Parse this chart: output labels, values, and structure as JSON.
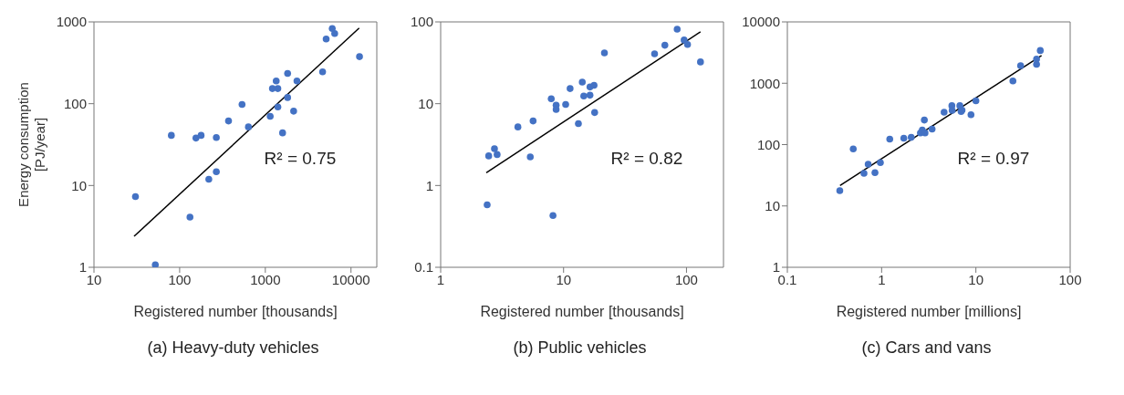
{
  "chart_data": [
    {
      "type": "scatter",
      "title": "(a) Heavy-duty vehicles",
      "xlabel": "Registered number [thousands]",
      "ylabel": "Energy consumption\n[PJ/year]",
      "log": "xy",
      "grid": false,
      "marker": "circle",
      "xlim": [
        10,
        20000
      ],
      "xticks": [
        10,
        100,
        1000,
        10000
      ],
      "ylim": [
        1,
        1000
      ],
      "yticks": [
        1,
        10,
        100,
        1000
      ],
      "annotations": [
        "R² = 0.75"
      ],
      "series": [
        {
          "color": "#4472c4",
          "x": [
            30.5,
            52,
            80,
            132,
            155,
            178,
            268,
            219,
            268,
            372,
            535,
            635,
            1140,
            1210,
            1400,
            1340,
            1400,
            1590,
            1820,
            1820,
            2140,
            2340,
            4660,
            5130,
            6040,
            6450,
            12570
          ],
          "values": [
            7.3,
            1.07,
            41,
            4.1,
            38,
            41,
            38.5,
            11.9,
            14.7,
            61.5,
            98,
            52,
            70,
            153,
            153,
            190,
            91,
            44,
            234,
            119,
            81,
            190,
            245,
            617,
            830,
            720,
            376
          ]
        },
        {
          "type": "line",
          "color": "#000000",
          "marker": "none",
          "x": [
            29.4,
            12450
          ],
          "values": [
            2.39,
            841
          ]
        }
      ]
    },
    {
      "type": "scatter",
      "title": "(b) Public vehicles",
      "xlabel": "Registered number [thousands]",
      "log": "xy",
      "grid": false,
      "marker": "circle",
      "xlim": [
        1,
        200
      ],
      "xticks": [
        1,
        10,
        100
      ],
      "ylim": [
        0.1,
        100
      ],
      "yticks": [
        0.1,
        1,
        10,
        100
      ],
      "annotations": [
        "R² = 0.82"
      ],
      "series": [
        {
          "color": "#4472c4",
          "x": [
            2.39,
            2.46,
            2.74,
            2.88,
            4.25,
            5.36,
            5.65,
            7.94,
            8.2,
            8.7,
            8.7,
            10.4,
            11.3,
            13.2,
            14.2,
            14.6,
            16.4,
            16.4,
            17.7,
            17.9,
            21.5,
            55,
            66.7,
            84,
            95.7,
            102,
            130
          ],
          "values": [
            0.58,
            2.3,
            2.82,
            2.39,
            5.2,
            2.24,
            6.15,
            11.5,
            0.43,
            9.6,
            8.5,
            9.8,
            15.3,
            5.7,
            18.4,
            12.4,
            12.7,
            16,
            16.8,
            7.8,
            41.8,
            40.8,
            51.8,
            81.5,
            60,
            53,
            32.4
          ]
        },
        {
          "type": "line",
          "color": "#000000",
          "marker": "none",
          "x": [
            2.35,
            130
          ],
          "values": [
            1.43,
            75.7
          ]
        }
      ]
    },
    {
      "type": "scatter",
      "title": "(c) Cars and vans",
      "xlabel": "Registered number [millions]",
      "log": "xy",
      "grid": false,
      "marker": "circle",
      "xlim": [
        0.1,
        100
      ],
      "xticks": [
        0.1,
        1,
        10,
        100
      ],
      "ylim": [
        1,
        10000
      ],
      "yticks": [
        1,
        10,
        100,
        1000,
        10000
      ],
      "annotations": [
        "R² = 0.97"
      ],
      "series": [
        {
          "color": "#4472c4",
          "x": [
            0.36,
            0.5,
            0.65,
            0.72,
            0.85,
            0.97,
            1.22,
            1.72,
            2.06,
            2.58,
            2.7,
            2.84,
            2.89,
            3.43,
            4.6,
            5.56,
            5.6,
            6.76,
            6.97,
            7.13,
            8.87,
            10,
            24.7,
            29.8,
            44,
            44,
            48.2
          ],
          "values": [
            17.7,
            85,
            34,
            48,
            35,
            51,
            123,
            127,
            131,
            155,
            173,
            251,
            155,
            179,
            338,
            430,
            361,
            430,
            345,
            365,
            306,
            518,
            1092,
            1932,
            2484,
            2040,
            3414
          ]
        },
        {
          "type": "line",
          "color": "#000000",
          "marker": "none",
          "x": [
            0.362,
            49.7
          ],
          "values": [
            21.5,
            2833
          ]
        }
      ]
    }
  ]
}
